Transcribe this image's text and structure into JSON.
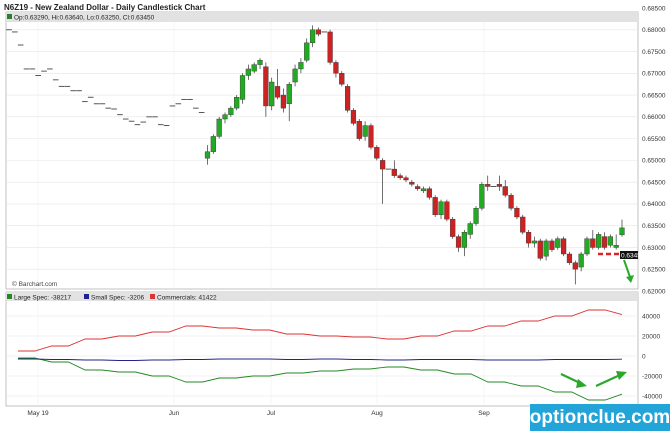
{
  "chart_data": [
    {
      "type": "candlestick",
      "title": "N6Z19 - New Zealand Dollar - Daily Candlestick Chart",
      "ohlc_info": "Op:0.63290, Hi:0.63640, Lo:0.63250, Cl:0.63450",
      "ylim": [
        0.62,
        0.685
      ],
      "y_ticks": [
        "0.62000",
        "0.62500",
        "0.63000",
        "0.63500",
        "0.64000",
        "0.64500",
        "0.65000",
        "0.65500",
        "0.66000",
        "0.66500",
        "0.67000",
        "0.67500",
        "0.68000",
        "0.68500"
      ],
      "x_ticks": [
        "May 19",
        "Jun",
        "Jul",
        "Aug",
        "Sep"
      ],
      "grid": true,
      "last_price": "0.63450",
      "watermark": "© Barchart.com",
      "colors": {
        "up": "#22aa22",
        "down": "#cc2222",
        "flat": "#444444"
      },
      "candles": [
        {
          "o": 0.68,
          "h": 0.6802,
          "l": 0.6796,
          "c": 0.68
        },
        {
          "o": 0.6795,
          "h": 0.6797,
          "l": 0.6792,
          "c": 0.6795
        },
        {
          "o": 0.6765,
          "h": 0.6767,
          "l": 0.6762,
          "c": 0.6765
        },
        {
          "o": 0.671,
          "h": 0.6712,
          "l": 0.6707,
          "c": 0.671
        },
        {
          "o": 0.671,
          "h": 0.6712,
          "l": 0.6707,
          "c": 0.671
        },
        {
          "o": 0.6695,
          "h": 0.6697,
          "l": 0.6692,
          "c": 0.6695
        },
        {
          "o": 0.6705,
          "h": 0.6707,
          "l": 0.6702,
          "c": 0.6705
        },
        {
          "o": 0.671,
          "h": 0.6712,
          "l": 0.6707,
          "c": 0.671
        },
        {
          "o": 0.6685,
          "h": 0.6687,
          "l": 0.6682,
          "c": 0.6685
        },
        {
          "o": 0.667,
          "h": 0.6672,
          "l": 0.6667,
          "c": 0.667
        },
        {
          "o": 0.667,
          "h": 0.6672,
          "l": 0.6667,
          "c": 0.667
        },
        {
          "o": 0.666,
          "h": 0.6662,
          "l": 0.6657,
          "c": 0.666
        },
        {
          "o": 0.666,
          "h": 0.6662,
          "l": 0.6657,
          "c": 0.666
        },
        {
          "o": 0.6635,
          "h": 0.6637,
          "l": 0.6632,
          "c": 0.6635
        },
        {
          "o": 0.6645,
          "h": 0.6647,
          "l": 0.6642,
          "c": 0.6645
        },
        {
          "o": 0.663,
          "h": 0.6632,
          "l": 0.6627,
          "c": 0.663
        },
        {
          "o": 0.663,
          "h": 0.6632,
          "l": 0.6627,
          "c": 0.663
        },
        {
          "o": 0.662,
          "h": 0.6622,
          "l": 0.6617,
          "c": 0.662
        },
        {
          "o": 0.6618,
          "h": 0.662,
          "l": 0.6615,
          "c": 0.6618
        },
        {
          "o": 0.6605,
          "h": 0.6607,
          "l": 0.6602,
          "c": 0.6605
        },
        {
          "o": 0.6595,
          "h": 0.6597,
          "l": 0.6592,
          "c": 0.6595
        },
        {
          "o": 0.659,
          "h": 0.6592,
          "l": 0.6587,
          "c": 0.659
        },
        {
          "o": 0.6582,
          "h": 0.6584,
          "l": 0.6579,
          "c": 0.6582
        },
        {
          "o": 0.6588,
          "h": 0.659,
          "l": 0.6585,
          "c": 0.6588
        },
        {
          "o": 0.66,
          "h": 0.6602,
          "l": 0.6597,
          "c": 0.66
        },
        {
          "o": 0.66,
          "h": 0.6602,
          "l": 0.6597,
          "c": 0.66
        },
        {
          "o": 0.6582,
          "h": 0.6584,
          "l": 0.6579,
          "c": 0.6582
        },
        {
          "o": 0.658,
          "h": 0.6582,
          "l": 0.6577,
          "c": 0.658
        },
        {
          "o": 0.6625,
          "h": 0.6627,
          "l": 0.6622,
          "c": 0.6625
        },
        {
          "o": 0.663,
          "h": 0.6632,
          "l": 0.6627,
          "c": 0.663
        },
        {
          "o": 0.664,
          "h": 0.6642,
          "l": 0.6637,
          "c": 0.664
        },
        {
          "o": 0.664,
          "h": 0.6642,
          "l": 0.6637,
          "c": 0.664
        },
        {
          "o": 0.662,
          "h": 0.6622,
          "l": 0.6617,
          "c": 0.662
        },
        {
          "o": 0.661,
          "h": 0.6612,
          "l": 0.6607,
          "c": 0.661
        },
        {
          "o": 0.6505,
          "h": 0.6535,
          "l": 0.649,
          "c": 0.652
        },
        {
          "o": 0.652,
          "h": 0.656,
          "l": 0.6515,
          "c": 0.6555
        },
        {
          "o": 0.6555,
          "h": 0.66,
          "l": 0.655,
          "c": 0.6595
        },
        {
          "o": 0.6595,
          "h": 0.661,
          "l": 0.6585,
          "c": 0.6605
        },
        {
          "o": 0.6605,
          "h": 0.6625,
          "l": 0.66,
          "c": 0.662
        },
        {
          "o": 0.662,
          "h": 0.665,
          "l": 0.6615,
          "c": 0.6645
        },
        {
          "o": 0.664,
          "h": 0.67,
          "l": 0.663,
          "c": 0.6695
        },
        {
          "o": 0.6695,
          "h": 0.672,
          "l": 0.6685,
          "c": 0.671
        },
        {
          "o": 0.6705,
          "h": 0.6725,
          "l": 0.67,
          "c": 0.672
        },
        {
          "o": 0.672,
          "h": 0.6735,
          "l": 0.671,
          "c": 0.673
        },
        {
          "o": 0.6715,
          "h": 0.6725,
          "l": 0.66,
          "c": 0.6625
        },
        {
          "o": 0.6625,
          "h": 0.669,
          "l": 0.6615,
          "c": 0.668
        },
        {
          "o": 0.667,
          "h": 0.671,
          "l": 0.664,
          "c": 0.6645
        },
        {
          "o": 0.665,
          "h": 0.6665,
          "l": 0.661,
          "c": 0.662
        },
        {
          "o": 0.663,
          "h": 0.668,
          "l": 0.659,
          "c": 0.6675
        },
        {
          "o": 0.668,
          "h": 0.672,
          "l": 0.667,
          "c": 0.671
        },
        {
          "o": 0.671,
          "h": 0.6735,
          "l": 0.67,
          "c": 0.6725
        },
        {
          "o": 0.673,
          "h": 0.678,
          "l": 0.6725,
          "c": 0.677
        },
        {
          "o": 0.677,
          "h": 0.681,
          "l": 0.676,
          "c": 0.68
        },
        {
          "o": 0.68,
          "h": 0.6805,
          "l": 0.6785,
          "c": 0.679
        },
        {
          "o": 0.6795,
          "h": 0.68,
          "l": 0.679,
          "c": 0.6795
        },
        {
          "o": 0.6795,
          "h": 0.68,
          "l": 0.672,
          "c": 0.6725
        },
        {
          "o": 0.6725,
          "h": 0.673,
          "l": 0.669,
          "c": 0.67
        },
        {
          "o": 0.67,
          "h": 0.6705,
          "l": 0.667,
          "c": 0.6675
        },
        {
          "o": 0.667,
          "h": 0.6675,
          "l": 0.661,
          "c": 0.6615
        },
        {
          "o": 0.6615,
          "h": 0.662,
          "l": 0.658,
          "c": 0.6585
        },
        {
          "o": 0.659,
          "h": 0.6595,
          "l": 0.6545,
          "c": 0.655
        },
        {
          "o": 0.6555,
          "h": 0.659,
          "l": 0.6545,
          "c": 0.658
        },
        {
          "o": 0.658,
          "h": 0.6585,
          "l": 0.6525,
          "c": 0.653
        },
        {
          "o": 0.653,
          "h": 0.6535,
          "l": 0.65,
          "c": 0.6505
        },
        {
          "o": 0.65,
          "h": 0.6505,
          "l": 0.64,
          "c": 0.648
        },
        {
          "o": 0.648,
          "h": 0.649,
          "l": 0.647,
          "c": 0.648
        },
        {
          "o": 0.648,
          "h": 0.65,
          "l": 0.646,
          "c": 0.6465
        },
        {
          "o": 0.6465,
          "h": 0.647,
          "l": 0.6455,
          "c": 0.646
        },
        {
          "o": 0.646,
          "h": 0.6465,
          "l": 0.645,
          "c": 0.6455
        },
        {
          "o": 0.645,
          "h": 0.6455,
          "l": 0.644,
          "c": 0.6445
        },
        {
          "o": 0.644,
          "h": 0.6445,
          "l": 0.643,
          "c": 0.6435
        },
        {
          "o": 0.643,
          "h": 0.644,
          "l": 0.6425,
          "c": 0.6435
        },
        {
          "o": 0.6435,
          "h": 0.644,
          "l": 0.641,
          "c": 0.6415
        },
        {
          "o": 0.6415,
          "h": 0.642,
          "l": 0.637,
          "c": 0.6375
        },
        {
          "o": 0.6375,
          "h": 0.641,
          "l": 0.6365,
          "c": 0.6405
        },
        {
          "o": 0.6405,
          "h": 0.641,
          "l": 0.636,
          "c": 0.6365
        },
        {
          "o": 0.6365,
          "h": 0.637,
          "l": 0.632,
          "c": 0.6325
        },
        {
          "o": 0.6325,
          "h": 0.633,
          "l": 0.629,
          "c": 0.63
        },
        {
          "o": 0.63,
          "h": 0.634,
          "l": 0.628,
          "c": 0.6335
        },
        {
          "o": 0.633,
          "h": 0.636,
          "l": 0.632,
          "c": 0.6355
        },
        {
          "o": 0.6355,
          "h": 0.6395,
          "l": 0.635,
          "c": 0.639
        },
        {
          "o": 0.639,
          "h": 0.645,
          "l": 0.6385,
          "c": 0.6445
        },
        {
          "o": 0.6445,
          "h": 0.6465,
          "l": 0.643,
          "c": 0.644
        },
        {
          "o": 0.644,
          "h": 0.645,
          "l": 0.643,
          "c": 0.644
        },
        {
          "o": 0.6445,
          "h": 0.6465,
          "l": 0.643,
          "c": 0.644
        },
        {
          "o": 0.644,
          "h": 0.6455,
          "l": 0.6415,
          "c": 0.642
        },
        {
          "o": 0.642,
          "h": 0.6425,
          "l": 0.6385,
          "c": 0.639
        },
        {
          "o": 0.639,
          "h": 0.6395,
          "l": 0.6365,
          "c": 0.637
        },
        {
          "o": 0.637,
          "h": 0.6375,
          "l": 0.633,
          "c": 0.6335
        },
        {
          "o": 0.6335,
          "h": 0.634,
          "l": 0.63,
          "c": 0.631
        },
        {
          "o": 0.631,
          "h": 0.6325,
          "l": 0.63,
          "c": 0.6315
        },
        {
          "o": 0.6315,
          "h": 0.632,
          "l": 0.627,
          "c": 0.6275
        },
        {
          "o": 0.628,
          "h": 0.632,
          "l": 0.627,
          "c": 0.6315
        },
        {
          "o": 0.6315,
          "h": 0.632,
          "l": 0.629,
          "c": 0.6295
        },
        {
          "o": 0.63,
          "h": 0.6325,
          "l": 0.6295,
          "c": 0.632
        },
        {
          "o": 0.632,
          "h": 0.6325,
          "l": 0.628,
          "c": 0.6285
        },
        {
          "o": 0.6285,
          "h": 0.629,
          "l": 0.626,
          "c": 0.6265
        },
        {
          "o": 0.6265,
          "h": 0.627,
          "l": 0.6215,
          "c": 0.625
        },
        {
          "o": 0.6255,
          "h": 0.629,
          "l": 0.6245,
          "c": 0.6285
        },
        {
          "o": 0.6285,
          "h": 0.6325,
          "l": 0.628,
          "c": 0.632
        },
        {
          "o": 0.632,
          "h": 0.634,
          "l": 0.6295,
          "c": 0.63
        },
        {
          "o": 0.63,
          "h": 0.6335,
          "l": 0.6295,
          "c": 0.633
        },
        {
          "o": 0.6325,
          "h": 0.6335,
          "l": 0.6295,
          "c": 0.63
        },
        {
          "o": 0.6305,
          "h": 0.633,
          "l": 0.63,
          "c": 0.6325
        },
        {
          "o": 0.63,
          "h": 0.633,
          "l": 0.6295,
          "c": 0.6305
        },
        {
          "o": 0.6329,
          "h": 0.6364,
          "l": 0.6325,
          "c": 0.6345
        }
      ]
    },
    {
      "type": "line",
      "title": "",
      "ylim": [
        -50000,
        55000
      ],
      "y_ticks": [
        "40000",
        "20000",
        "0",
        "-20000",
        "-40000"
      ],
      "x_ticks": [
        "May 19",
        "Jun",
        "Jul",
        "Aug",
        "Sep"
      ],
      "grid": true,
      "legend_position": "top-left",
      "series": [
        {
          "name": "Large Spec: -38217",
          "color": "#228822",
          "values": [
            -2000,
            -2000,
            -6000,
            -6000,
            -14000,
            -14000,
            -16000,
            -16000,
            -20000,
            -20000,
            -26000,
            -26000,
            -22000,
            -22000,
            -20000,
            -20000,
            -17000,
            -17000,
            -15000,
            -15000,
            -13000,
            -13000,
            -11000,
            -11000,
            -14000,
            -14000,
            -18000,
            -18000,
            -26000,
            -26000,
            -30000,
            -30000,
            -36000,
            -36000,
            -44000,
            -44000,
            -38217
          ]
        },
        {
          "name": "Small Spec: -3206",
          "color": "#222288",
          "values": [
            -3000,
            -3000,
            -3500,
            -3500,
            -4000,
            -4000,
            -4500,
            -4500,
            -4000,
            -4000,
            -3500,
            -3500,
            -3000,
            -3000,
            -3000,
            -3000,
            -3500,
            -3500,
            -3000,
            -3000,
            -3500,
            -3500,
            -4000,
            -4000,
            -3500,
            -3500,
            -3500,
            -3500,
            -4000,
            -4000,
            -4000,
            -4000,
            -3500,
            -3500,
            -3500,
            -3500,
            -3206
          ]
        },
        {
          "name": "Commercials: 41422",
          "color": "#dd3333",
          "values": [
            5000,
            5000,
            10000,
            10000,
            17000,
            17000,
            20000,
            20000,
            24000,
            24000,
            30000,
            30000,
            28000,
            28000,
            26000,
            26000,
            22000,
            22000,
            20000,
            20000,
            19000,
            19000,
            17000,
            17000,
            20000,
            20000,
            25000,
            25000,
            30000,
            30000,
            35000,
            35000,
            40000,
            40000,
            46000,
            46000,
            41422
          ]
        }
      ]
    }
  ],
  "branding": {
    "text": "optionclue.com"
  }
}
